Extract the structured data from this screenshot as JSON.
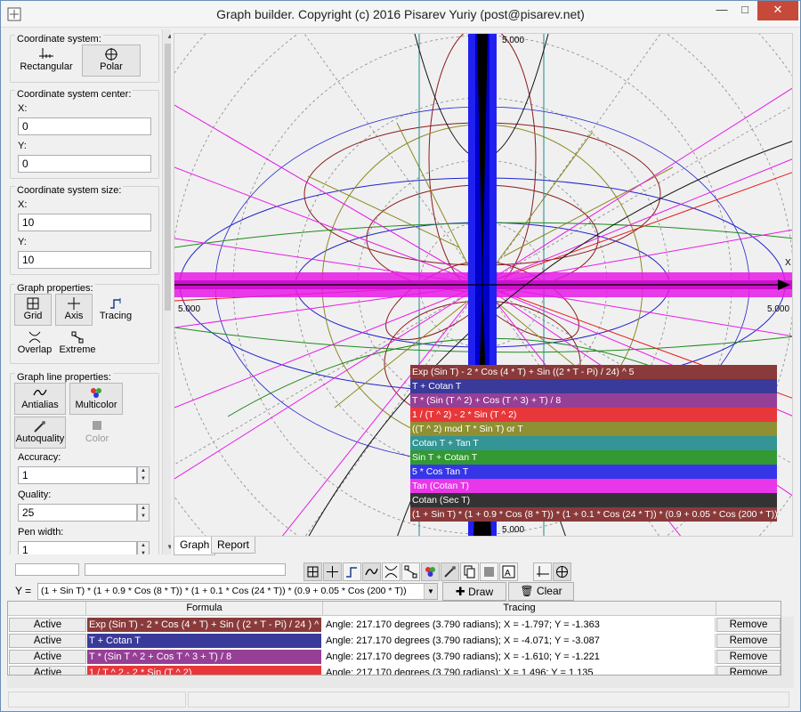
{
  "window": {
    "title": "Graph builder. Copyright (c) 2016 Pisarev Yuriy (post@pisarev.net)",
    "minimize_icon": "minimize-icon",
    "maximize_icon": "maximize-icon",
    "close_icon": "close-icon"
  },
  "left_panel": {
    "coordinate_system": {
      "title": "Coordinate system:",
      "rectangular": "Rectangular",
      "polar": "Polar",
      "selected": "Polar"
    },
    "center": {
      "title": "Coordinate system center:",
      "x_label": "X:",
      "x_value": "0",
      "y_label": "Y:",
      "y_value": "0"
    },
    "size": {
      "title": "Coordinate system size:",
      "x_label": "X:",
      "x_value": "10",
      "y_label": "Y:",
      "y_value": "10"
    },
    "graph_properties": {
      "title": "Graph properties:",
      "grid": "Grid",
      "axis": "Axis",
      "tracing": "Tracing",
      "overlap": "Overlap",
      "extreme": "Extreme"
    },
    "line_properties": {
      "title": "Graph line properties:",
      "antialias": "Antialias",
      "multicolor": "Multicolor",
      "autoquality": "Autoquality",
      "color": "Color",
      "accuracy_label": "Accuracy:",
      "accuracy_value": "1",
      "quality_label": "Quality:",
      "quality_value": "25",
      "pen_width_label": "Pen width:",
      "pen_width_value": "1"
    }
  },
  "graph": {
    "top_label": "5.000",
    "bottom_label": "5.000",
    "left_label": "5.000",
    "right_label": "5.000",
    "axis_label": "X"
  },
  "legend": [
    {
      "text": "Exp (Sin T) - 2 * Cos (4 * T) + Sin ((2 * T - Pi) / 24) ^ 5",
      "color": "#8a3a3a"
    },
    {
      "text": "T + Cotan T",
      "color": "#3a3a9a"
    },
    {
      "text": "T * (Sin (T ^ 2) + Cos (T ^ 3) + T) / 8",
      "color": "#963f96"
    },
    {
      "text": "1 / (T ^ 2) - 2 * Sin (T ^ 2)",
      "color": "#e8373a"
    },
    {
      "text": "((T ^ 2) mod T * Sin T) or T",
      "color": "#8f8f33"
    },
    {
      "text": "Cotan T + Tan T",
      "color": "#339595"
    },
    {
      "text": "Sin T + Cotan T",
      "color": "#339933"
    },
    {
      "text": "5 * Cos Tan T",
      "color": "#3636e8"
    },
    {
      "text": "Tan (Cotan T)",
      "color": "#e837e8"
    },
    {
      "text": "Cotan (Sec T)",
      "color": "#333333"
    },
    {
      "text": "(1 + Sin T) * (1 + 0.9 * Cos (8 * T)) * (1 + 0.1 * Cos (24 * T)) * (0.9 + 0.05 * Cos (200 * T))",
      "color": "#8a3a3a"
    }
  ],
  "tabs": [
    {
      "label": "Graph"
    },
    {
      "label": "Report"
    }
  ],
  "formula_bar": {
    "y_label": "Y =",
    "formula": "(1 + Sin T) * (1 + 0.9 * Cos (8 * T)) * (1 + 0.1 * Cos (24 * T)) * (0.9 + 0.05 * Cos (200 * T))",
    "draw": "Draw",
    "clear": "Clear"
  },
  "table": {
    "headers": {
      "formula": "Formula",
      "tracing": "Tracing"
    },
    "rows": [
      {
        "active": "Active",
        "formula": "Exp (Sin T) - 2 * Cos (4 * T) + Sin ( (2 * T - Pi) / 24 ) ^ 5",
        "color": "#8a3a3a",
        "tracing": "Angle: 217.170 degrees (3.790 radians); X = -1.797; Y = -1.363",
        "remove": "Remove"
      },
      {
        "active": "Active",
        "formula": "T + Cotan T",
        "color": "#3a3a9a",
        "tracing": "Angle: 217.170 degrees (3.790 radians); X = -4.071; Y = -3.087",
        "remove": "Remove"
      },
      {
        "active": "Active",
        "formula": "T * (Sin T ^ 2 + Cos T ^ 3 + T) / 8",
        "color": "#963f96",
        "tracing": "Angle: 217.170 degrees (3.790 radians); X = -1.610; Y = -1.221",
        "remove": "Remove"
      },
      {
        "active": "Active",
        "formula": "1 / T ^ 2 - 2 * Sin (T ^ 2)",
        "color": "#e8373a",
        "tracing": "Angle: 217.170 degrees (3.790 radians); X = 1.496; Y = 1.135",
        "remove": "Remove"
      }
    ]
  }
}
